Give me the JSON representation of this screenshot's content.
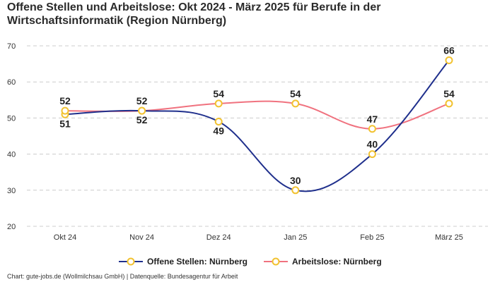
{
  "chart_data": {
    "type": "line",
    "title": "Offene Stellen und Arbeitslose: Okt 2024 - März 2025 für Berufe in der Wirtschaftsinformatik (Region Nürnberg)",
    "categories": [
      "Okt 24",
      "Nov 24",
      "Dez 24",
      "Jan 25",
      "Feb 25",
      "März 25"
    ],
    "ylim": [
      20,
      70
    ],
    "yticks": [
      20,
      30,
      40,
      50,
      60,
      70
    ],
    "grid": true,
    "legend_position": "bottom",
    "series": [
      {
        "name": "Offene Stellen: Nürnberg",
        "values": [
          51,
          52,
          49,
          30,
          40,
          66
        ],
        "color": "#1f2f8c"
      },
      {
        "name": "Arbeitslose: Nürnberg",
        "values": [
          52,
          52,
          54,
          54,
          47,
          54
        ],
        "color": "#f0727f"
      }
    ],
    "marker_color": "#f2c230"
  },
  "footer": "Chart: gute-jobs.de (Wollmilchsau GmbH) | Datenquelle: Bundesagentur für Arbeit"
}
